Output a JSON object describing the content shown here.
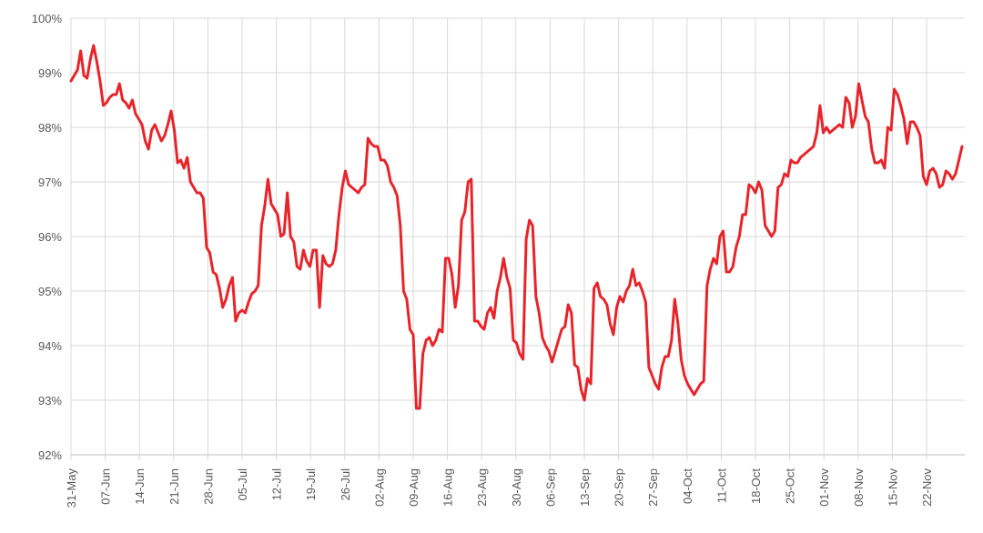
{
  "chart_data": {
    "type": "line",
    "title": "",
    "xlabel": "",
    "ylabel": "",
    "ylim": [
      0.92,
      1.0
    ],
    "y_ticks": [
      "92%",
      "93%",
      "94%",
      "95%",
      "96%",
      "97%",
      "98%",
      "99%",
      "100%"
    ],
    "x_ticks": [
      "31-May",
      "07-Jun",
      "14-Jun",
      "21-Jun",
      "28-Jun",
      "05-Jul",
      "12-Jul",
      "19-Jul",
      "26-Jul",
      "02-Aug",
      "09-Aug",
      "16-Aug",
      "23-Aug",
      "30-Aug",
      "06-Sep",
      "13-Sep",
      "20-Sep",
      "27-Sep",
      "04-Oct",
      "11-Oct",
      "18-Oct",
      "25-Oct",
      "01-Nov",
      "08-Nov",
      "15-Nov",
      "22-Nov"
    ],
    "grid": "horizontal and vertical",
    "line_color": "#e8242a",
    "series": [
      {
        "x_start": "31-May",
        "x_end": "28-Nov",
        "values": [
          0.9885,
          0.9895,
          0.9905,
          0.994,
          0.9895,
          0.989,
          0.9925,
          0.995,
          0.992,
          0.9885,
          0.984,
          0.9845,
          0.9855,
          0.986,
          0.986,
          0.988,
          0.985,
          0.9845,
          0.9835,
          0.985,
          0.9825,
          0.9815,
          0.9805,
          0.9775,
          0.976,
          0.9795,
          0.9805,
          0.979,
          0.9775,
          0.9785,
          0.9805,
          0.983,
          0.9795,
          0.9735,
          0.974,
          0.9725,
          0.9745,
          0.97,
          0.969,
          0.968,
          0.968,
          0.967,
          0.958,
          0.957,
          0.9535,
          0.953,
          0.9505,
          0.947,
          0.9485,
          0.951,
          0.9525,
          0.9445,
          0.946,
          0.9465,
          0.946,
          0.948,
          0.9495,
          0.95,
          0.951,
          0.962,
          0.9655,
          0.9705,
          0.966,
          0.965,
          0.964,
          0.96,
          0.9605,
          0.968,
          0.96,
          0.959,
          0.9545,
          0.954,
          0.9575,
          0.9555,
          0.9545,
          0.9575,
          0.9575,
          0.947,
          0.9565,
          0.955,
          0.9545,
          0.955,
          0.9575,
          0.964,
          0.969,
          0.972,
          0.9695,
          0.969,
          0.9685,
          0.968,
          0.969,
          0.9695,
          0.978,
          0.977,
          0.9765,
          0.9765,
          0.974,
          0.974,
          0.973,
          0.97,
          0.969,
          0.9675,
          0.962,
          0.95,
          0.9485,
          0.943,
          0.942,
          0.9285,
          0.9285,
          0.9385,
          0.941,
          0.9415,
          0.94,
          0.941,
          0.943,
          0.9425,
          0.956,
          0.956,
          0.953,
          0.947,
          0.951,
          0.963,
          0.9645,
          0.97,
          0.9705,
          0.9445,
          0.9445,
          0.9435,
          0.943,
          0.946,
          0.947,
          0.945,
          0.95,
          0.9525,
          0.956,
          0.9525,
          0.9505,
          0.941,
          0.9405,
          0.9385,
          0.9375,
          0.9595,
          0.963,
          0.962,
          0.949,
          0.946,
          0.9415,
          0.94,
          0.939,
          0.937,
          0.939,
          0.941,
          0.943,
          0.9435,
          0.9475,
          0.946,
          0.9365,
          0.936,
          0.932,
          0.93,
          0.934,
          0.933,
          0.9505,
          0.9515,
          0.949,
          0.9485,
          0.9475,
          0.944,
          0.942,
          0.947,
          0.949,
          0.948,
          0.95,
          0.951,
          0.954,
          0.951,
          0.9515,
          0.95,
          0.948,
          0.936,
          0.9345,
          0.933,
          0.932,
          0.936,
          0.938,
          0.938,
          0.941,
          0.9485,
          0.944,
          0.9375,
          0.9345,
          0.933,
          0.932,
          0.931,
          0.932,
          0.933,
          0.9335,
          0.951,
          0.954,
          0.956,
          0.955,
          0.96,
          0.961,
          0.9535,
          0.9535,
          0.9545,
          0.958,
          0.96,
          0.964,
          0.964,
          0.9695,
          0.969,
          0.968,
          0.97,
          0.9685,
          0.962,
          0.961,
          0.96,
          0.961,
          0.969,
          0.9695,
          0.9715,
          0.971,
          0.974,
          0.9735,
          0.9735,
          0.9745,
          0.975,
          0.9755,
          0.976,
          0.9765,
          0.979,
          0.984,
          0.979,
          0.98,
          0.979,
          0.9795,
          0.98,
          0.9805,
          0.98,
          0.9855,
          0.9845,
          0.98,
          0.982,
          0.988,
          0.985,
          0.982,
          0.981,
          0.976,
          0.9735,
          0.9735,
          0.974,
          0.9725,
          0.98,
          0.9795,
          0.987,
          0.986,
          0.984,
          0.9815,
          0.977,
          0.981,
          0.981,
          0.98,
          0.9785,
          0.971,
          0.9695,
          0.972,
          0.9725,
          0.9715,
          0.969,
          0.9695,
          0.972,
          0.9715,
          0.9705,
          0.9715,
          0.974,
          0.9765
        ]
      }
    ]
  }
}
